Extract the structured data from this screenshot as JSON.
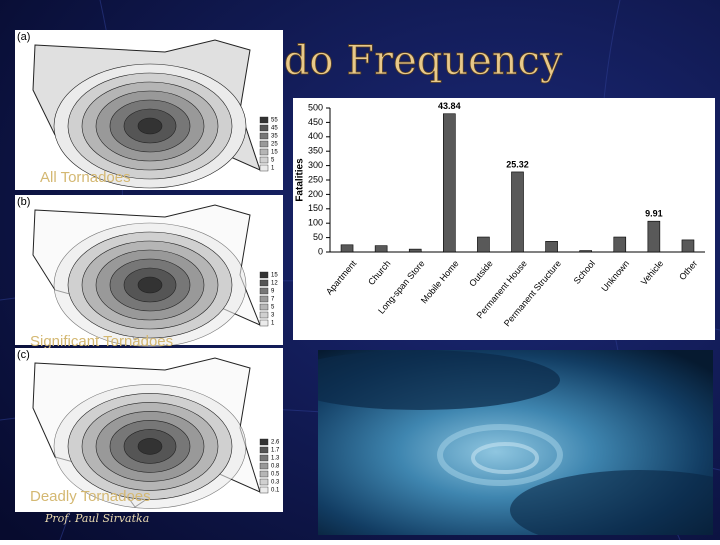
{
  "title": "Tornado Frequency",
  "author": "Prof. Paul Sirvatka",
  "maps": [
    {
      "label": "(a)",
      "caption": "All Tornadoes",
      "legend": [
        "55",
        "45",
        "35",
        "25",
        "15",
        "5",
        "1"
      ]
    },
    {
      "label": "(b)",
      "caption": "Significant Tornadoes",
      "legend": [
        "15",
        "12",
        "9",
        "7",
        "5",
        "3",
        "1"
      ]
    },
    {
      "label": "(c)",
      "caption": "Deadly Tornadoes",
      "legend": [
        "2.6",
        "1.7",
        "1.3",
        "0.8",
        "0.5",
        "0.3",
        "0.1"
      ]
    }
  ],
  "chart_data": {
    "type": "bar",
    "y_label": "Fatalities",
    "categories": [
      "Apartment",
      "Church",
      "Long-span Store",
      "Mobile Home",
      "Outside",
      "Permanent House",
      "Permanent Structure",
      "School",
      "Unknown",
      "Vehicle",
      "Other"
    ],
    "values": [
      25,
      22,
      10,
      480,
      52,
      278,
      37,
      5,
      52,
      107,
      42
    ],
    "bar_annotations": [
      null,
      null,
      null,
      "43.84",
      null,
      "25.32",
      null,
      null,
      null,
      "9.91",
      null
    ],
    "color": "#595959",
    "ylim": [
      0,
      500
    ],
    "yticks": [
      0,
      50,
      100,
      150,
      200,
      250,
      300,
      350,
      400,
      450,
      500
    ]
  }
}
